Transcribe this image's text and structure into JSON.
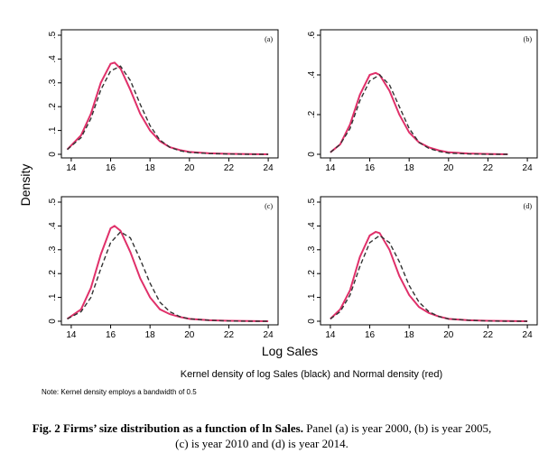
{
  "figure": {
    "ylabel": "Density",
    "xlabel": "Log Sales",
    "legend_note": "Kernel density of log Sales (black) and Normal density (red)",
    "small_note": "Note: Kernel density employs a bandwidth of 0.5",
    "caption_bold": "Fig. 2 Firms’ size distribution as a function of ln Sales.",
    "caption_rest": " Panel (a) is year 2000, (b) is year 2005, (c) is year 2010 and (d) is year 2014.",
    "colors": {
      "normal": "#e0306a",
      "kernel": "#333333"
    }
  },
  "chart_data": [
    {
      "type": "line",
      "panel": "(a)",
      "xlim": [
        13.5,
        24.5
      ],
      "ylim": [
        0,
        0.5
      ],
      "x_ticks": [
        "14",
        "16",
        "18",
        "20",
        "22",
        "24"
      ],
      "y_ticks": [
        "0",
        ".1",
        ".2",
        ".3",
        ".4",
        ".5"
      ],
      "series": [
        {
          "role": "kernel",
          "x": [
            13.8,
            14.5,
            15.0,
            15.5,
            16.0,
            16.5,
            17.0,
            17.5,
            18.0,
            18.5,
            19.0,
            19.5,
            20.0,
            21.0,
            22.0,
            23.0,
            24.0
          ],
          "y": [
            0.02,
            0.07,
            0.15,
            0.27,
            0.35,
            0.37,
            0.31,
            0.21,
            0.12,
            0.06,
            0.03,
            0.015,
            0.008,
            0.003,
            0.001,
            0.0,
            0.0
          ]
        },
        {
          "role": "normal",
          "x": [
            13.8,
            14.5,
            15.0,
            15.5,
            16.0,
            16.2,
            16.5,
            17.0,
            17.5,
            18.0,
            18.5,
            19.0,
            19.5,
            20.0,
            21.0,
            22.0,
            23.0,
            24.0
          ],
          "y": [
            0.02,
            0.08,
            0.17,
            0.3,
            0.38,
            0.385,
            0.36,
            0.27,
            0.17,
            0.1,
            0.055,
            0.03,
            0.018,
            0.01,
            0.004,
            0.002,
            0.001,
            0.0
          ]
        }
      ]
    },
    {
      "type": "line",
      "panel": "(b)",
      "xlim": [
        13.5,
        24.5
      ],
      "ylim": [
        0,
        0.6
      ],
      "x_ticks": [
        "14",
        "16",
        "18",
        "20",
        "22",
        "24"
      ],
      "y_ticks": [
        "0",
        ".2",
        ".4",
        ".6"
      ],
      "series": [
        {
          "role": "kernel",
          "x": [
            14.0,
            14.5,
            15.0,
            15.5,
            16.0,
            16.5,
            17.0,
            17.5,
            18.0,
            18.5,
            19.0,
            19.5,
            20.0,
            21.0,
            22.0,
            23.0
          ],
          "y": [
            0.01,
            0.05,
            0.13,
            0.27,
            0.37,
            0.4,
            0.35,
            0.24,
            0.13,
            0.06,
            0.03,
            0.015,
            0.006,
            0.002,
            0.0,
            0.0
          ]
        },
        {
          "role": "normal",
          "x": [
            14.0,
            14.5,
            15.0,
            15.5,
            16.0,
            16.3,
            16.5,
            17.0,
            17.5,
            18.0,
            18.5,
            19.0,
            19.5,
            20.0,
            21.0,
            22.0,
            23.0
          ],
          "y": [
            0.01,
            0.05,
            0.15,
            0.3,
            0.4,
            0.41,
            0.4,
            0.32,
            0.2,
            0.11,
            0.06,
            0.035,
            0.02,
            0.01,
            0.004,
            0.002,
            0.0
          ]
        }
      ]
    },
    {
      "type": "line",
      "panel": "(c)",
      "xlim": [
        13.5,
        24.5
      ],
      "ylim": [
        0,
        0.5
      ],
      "x_ticks": [
        "14",
        "16",
        "18",
        "20",
        "22",
        "24"
      ],
      "y_ticks": [
        "0",
        ".1",
        ".2",
        ".3",
        ".4",
        ".5"
      ],
      "series": [
        {
          "role": "kernel",
          "x": [
            13.8,
            14.5,
            15.0,
            15.5,
            16.0,
            16.5,
            17.0,
            17.5,
            18.0,
            18.5,
            19.0,
            19.5,
            20.0,
            21.0,
            22.0,
            23.0,
            24.0
          ],
          "y": [
            0.01,
            0.04,
            0.1,
            0.22,
            0.33,
            0.375,
            0.35,
            0.26,
            0.16,
            0.08,
            0.04,
            0.02,
            0.01,
            0.004,
            0.001,
            0.0,
            0.0
          ]
        },
        {
          "role": "normal",
          "x": [
            13.8,
            14.5,
            15.0,
            15.5,
            16.0,
            16.2,
            16.5,
            17.0,
            17.5,
            18.0,
            18.5,
            19.0,
            19.5,
            20.0,
            21.0,
            22.0,
            23.0,
            24.0
          ],
          "y": [
            0.01,
            0.05,
            0.14,
            0.28,
            0.39,
            0.4,
            0.38,
            0.29,
            0.18,
            0.1,
            0.05,
            0.03,
            0.018,
            0.01,
            0.004,
            0.002,
            0.001,
            0.0
          ]
        }
      ]
    },
    {
      "type": "line",
      "panel": "(d)",
      "xlim": [
        13.5,
        24.5
      ],
      "ylim": [
        0,
        0.5
      ],
      "x_ticks": [
        "14",
        "16",
        "18",
        "20",
        "22",
        "24"
      ],
      "y_ticks": [
        "0",
        ".1",
        ".2",
        ".3",
        ".4",
        ".5"
      ],
      "series": [
        {
          "role": "kernel",
          "x": [
            14.0,
            14.5,
            15.0,
            15.5,
            16.0,
            16.5,
            17.0,
            17.5,
            18.0,
            18.5,
            19.0,
            19.5,
            20.0,
            21.0,
            22.0,
            23.0,
            24.0
          ],
          "y": [
            0.01,
            0.04,
            0.11,
            0.23,
            0.33,
            0.36,
            0.33,
            0.25,
            0.15,
            0.08,
            0.04,
            0.02,
            0.01,
            0.004,
            0.001,
            0.0,
            0.0
          ]
        },
        {
          "role": "normal",
          "x": [
            14.0,
            14.5,
            15.0,
            15.5,
            16.0,
            16.3,
            16.5,
            17.0,
            17.5,
            18.0,
            18.5,
            19.0,
            19.5,
            20.0,
            21.0,
            22.0,
            23.0,
            24.0
          ],
          "y": [
            0.01,
            0.05,
            0.13,
            0.27,
            0.36,
            0.375,
            0.37,
            0.3,
            0.19,
            0.11,
            0.06,
            0.035,
            0.02,
            0.01,
            0.004,
            0.002,
            0.001,
            0.0
          ]
        }
      ]
    }
  ]
}
